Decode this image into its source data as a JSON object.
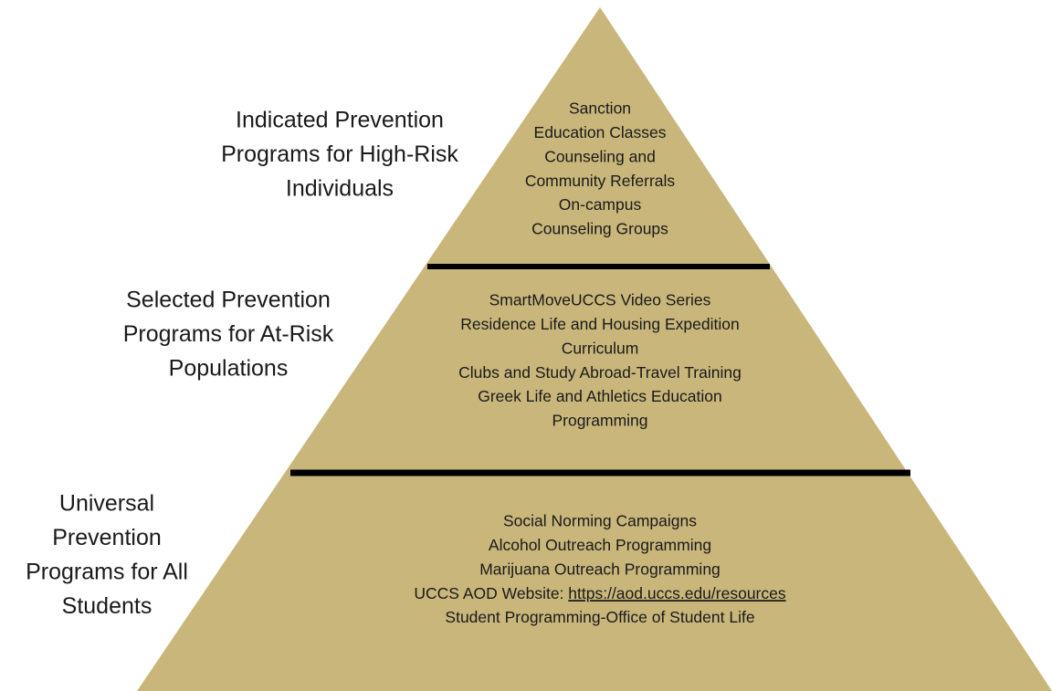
{
  "tiers": [
    {
      "label": [
        "Indicated Prevention",
        "Programs for High-Risk",
        "Individuals"
      ],
      "items": [
        "Sanction",
        "Education Classes",
        "Counseling and",
        "Community Referrals",
        "On-campus",
        "Counseling Groups"
      ]
    },
    {
      "label": [
        "Selected Prevention",
        "Programs for At-Risk",
        "Populations"
      ],
      "items": [
        "SmartMoveUCCS Video Series",
        "Residence Life and Housing Expedition",
        "Curriculum",
        "Clubs and Study Abroad-Travel Training",
        "Greek Life and Athletics Education",
        "Programming"
      ]
    },
    {
      "label": [
        "Universal",
        "Prevention",
        "Programs for All",
        "Students"
      ],
      "items": [
        "Social Norming Campaigns",
        "Alcohol Outreach Programming",
        "Marijuana Outreach Programming",
        {
          "text": "UCCS AOD Website: ",
          "link": "https://aod.uccs.edu/resources"
        },
        "Student Programming-Office of Student Life"
      ]
    }
  ]
}
